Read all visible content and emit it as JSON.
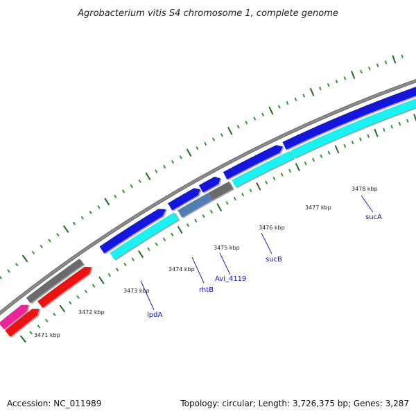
{
  "title": "Agrobacterium vitis S4 chromosome 1, complete genome",
  "footer": {
    "accession": "Accession: NC_011989",
    "summary": "Topology: circular; Length: 3,726,375 bp; Genes: 3,287"
  },
  "colors": {
    "backbone": "#8a8a8a",
    "tick_major": "#1a6e1a",
    "tick_minor": "#2e9a2e",
    "label_line": "#2020c0",
    "gene_blue": "#1515e0",
    "gene_cyan": "#19f2f2",
    "gene_gray": "#6a6a6a",
    "gene_steelblue": "#4f7fb4",
    "gene_red": "#ee1111",
    "gene_pink": "#ee2299"
  },
  "scale_ticks": [
    {
      "label": "3471 kbp"
    },
    {
      "label": "3472 kbp"
    },
    {
      "label": "3473 kbp"
    },
    {
      "label": "3474 kbp"
    },
    {
      "label": "3475 kbp"
    },
    {
      "label": "3476 kbp"
    },
    {
      "label": "3477 kbp"
    },
    {
      "label": "3478 kbp"
    }
  ],
  "gene_labels": [
    {
      "name": "lpdA"
    },
    {
      "name": "rhtB"
    },
    {
      "name": "Avi_4119"
    },
    {
      "name": "sucB"
    },
    {
      "name": "sucA"
    }
  ]
}
